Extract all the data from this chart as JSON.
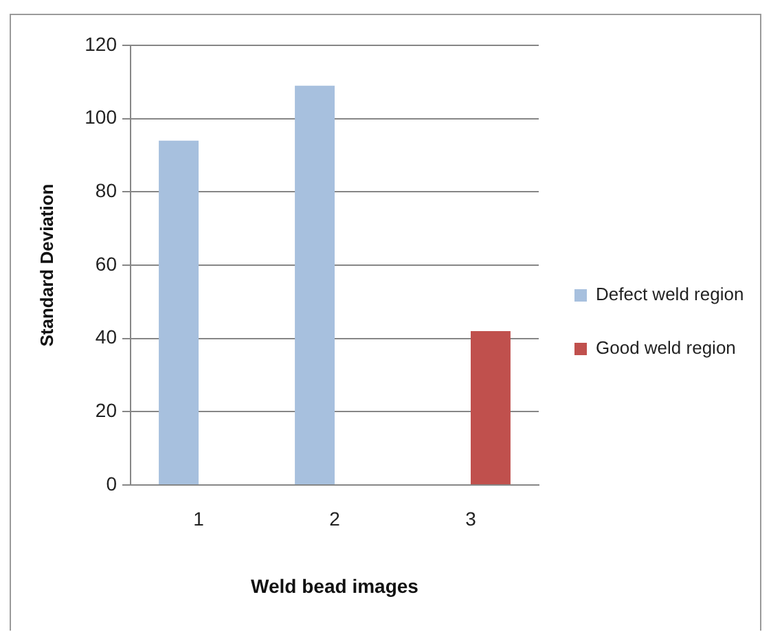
{
  "chart_data": {
    "type": "bar",
    "xlabel": "Weld bead images",
    "ylabel": "Standard Deviation",
    "categories": [
      "1",
      "2",
      "3"
    ],
    "series": [
      {
        "name": "Defect weld region",
        "color": "#a7c0de",
        "values": [
          94,
          109,
          null
        ]
      },
      {
        "name": "Good weld region",
        "color": "#c0504d",
        "values": [
          null,
          null,
          42
        ]
      }
    ],
    "ylim": [
      0,
      120
    ],
    "yticks": [
      0,
      20,
      40,
      60,
      80,
      100,
      120
    ],
    "grid": "y",
    "legend": "right"
  }
}
